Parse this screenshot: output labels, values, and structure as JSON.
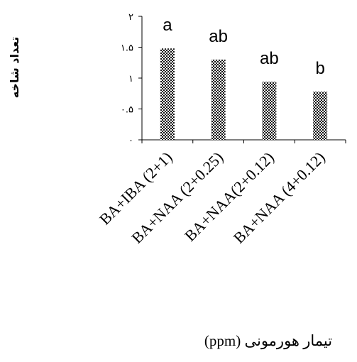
{
  "chart_data": {
    "type": "bar",
    "categories": [
      "BA+IBA (2+1)",
      "BA+NAA (2+0.25)",
      "BA+NAA(2+0.12)",
      "BA+NAA (4+0.12)"
    ],
    "values": [
      1.48,
      1.3,
      0.94,
      0.78
    ],
    "significance_letters": [
      "a",
      "ab",
      "ab",
      "b"
    ],
    "ylim": [
      0,
      2
    ],
    "yticks": [
      {
        "value": 0,
        "label": "۰"
      },
      {
        "value": 0.5,
        "label": "۰.۵"
      },
      {
        "value": 1,
        "label": "۱"
      },
      {
        "value": 1.5,
        "label": "۱.۵"
      },
      {
        "value": 2,
        "label": "۲"
      }
    ],
    "ylabel": "تعداد شاخه",
    "xlabel": "تیمار هورمونی (ppm)",
    "title": "",
    "grid": false,
    "bar_fill": "checkered"
  }
}
